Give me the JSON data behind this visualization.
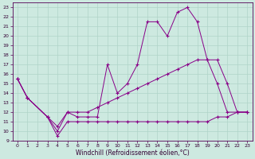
{
  "bg_color": "#cde9e0",
  "grid_color": "#b0d4c8",
  "line_color": "#880088",
  "xlabel": "Windchill (Refroidissement éolien,°C)",
  "ylim": [
    9,
    23.5
  ],
  "xlim": [
    -0.5,
    23.5
  ],
  "yticks": [
    9,
    10,
    11,
    12,
    13,
    14,
    15,
    16,
    17,
    18,
    19,
    20,
    21,
    22,
    23
  ],
  "xticks": [
    0,
    1,
    2,
    3,
    4,
    5,
    6,
    7,
    8,
    9,
    10,
    11,
    12,
    13,
    14,
    15,
    16,
    17,
    18,
    19,
    20,
    21,
    22,
    23
  ],
  "line1_x": [
    0,
    1,
    3,
    4,
    5,
    6,
    7,
    8,
    9,
    10,
    11,
    12,
    13,
    14,
    15,
    16,
    17,
    18,
    19,
    20,
    21,
    22,
    23
  ],
  "line1_y": [
    15.5,
    13.5,
    11.5,
    10.0,
    12.0,
    11.5,
    11.5,
    11.5,
    17.0,
    14.0,
    15.0,
    17.0,
    21.5,
    21.5,
    20.0,
    22.5,
    23.0,
    21.5,
    17.5,
    15.0,
    12.0,
    12.0,
    12.0
  ],
  "line2_x": [
    0,
    1,
    3,
    4,
    5,
    6,
    7,
    8,
    9,
    10,
    11,
    12,
    13,
    14,
    15,
    16,
    17,
    18,
    19,
    20,
    21,
    22,
    23
  ],
  "line2_y": [
    15.5,
    13.5,
    11.5,
    9.5,
    11.0,
    11.0,
    11.0,
    11.0,
    11.0,
    11.0,
    11.0,
    11.0,
    11.0,
    11.0,
    11.0,
    11.0,
    11.0,
    11.0,
    11.0,
    11.5,
    11.5,
    12.0,
    12.0
  ],
  "line3_x": [
    0,
    1,
    3,
    4,
    5,
    6,
    7,
    8,
    9,
    10,
    11,
    12,
    13,
    14,
    15,
    16,
    17,
    18,
    19,
    20,
    21,
    22,
    23
  ],
  "line3_y": [
    15.5,
    13.5,
    11.5,
    10.5,
    12.0,
    12.0,
    12.0,
    12.5,
    13.0,
    13.5,
    14.0,
    14.5,
    15.0,
    15.5,
    16.0,
    16.5,
    17.0,
    17.5,
    17.5,
    17.5,
    15.0,
    12.0,
    12.0
  ]
}
